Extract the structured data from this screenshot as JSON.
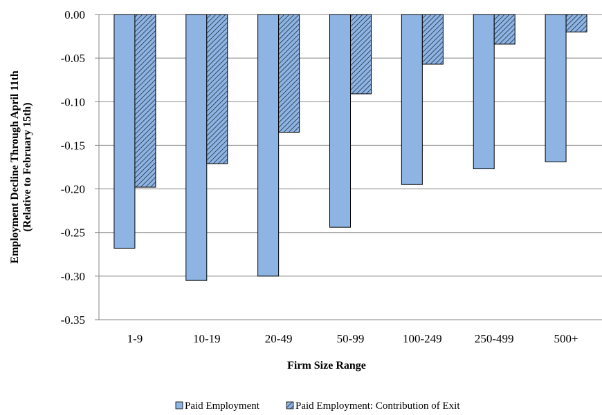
{
  "chart_data": {
    "type": "bar",
    "title": "",
    "xlabel": "Firm Size Range",
    "ylabel_line1": "Employment Decline Through April 11th",
    "ylabel_line2": "(Relative to February 15th)",
    "categories": [
      "1-9",
      "10-19",
      "20-49",
      "50-99",
      "100-249",
      "250-499",
      "500+"
    ],
    "series": [
      {
        "name": "Paid Employment",
        "fill": "solid",
        "color": "#8EB4E3",
        "values": [
          -0.268,
          -0.305,
          -0.3,
          -0.244,
          -0.195,
          -0.177,
          -0.169
        ]
      },
      {
        "name": "Paid Employment: Contribution of Exit",
        "fill": "diagonal-hatch",
        "color": "#8EB4E3",
        "values": [
          -0.198,
          -0.171,
          -0.135,
          -0.091,
          -0.057,
          -0.034,
          -0.02
        ]
      }
    ],
    "ylim": [
      -0.35,
      0.0
    ],
    "yticks": [
      "0.00",
      "-0.05",
      "-0.10",
      "-0.15",
      "-0.20",
      "-0.25",
      "-0.30",
      "-0.35"
    ],
    "ytick_values": [
      0.0,
      -0.05,
      -0.1,
      -0.15,
      -0.2,
      -0.25,
      -0.3,
      -0.35
    ],
    "grid": "horizontal",
    "legend_position": "bottom",
    "colors": {
      "bar_fill": "#8EB4E3",
      "bar_stroke": "#000000",
      "hatch_line": "#1F2D40",
      "grid": "#868686",
      "axis": "#868686"
    }
  }
}
